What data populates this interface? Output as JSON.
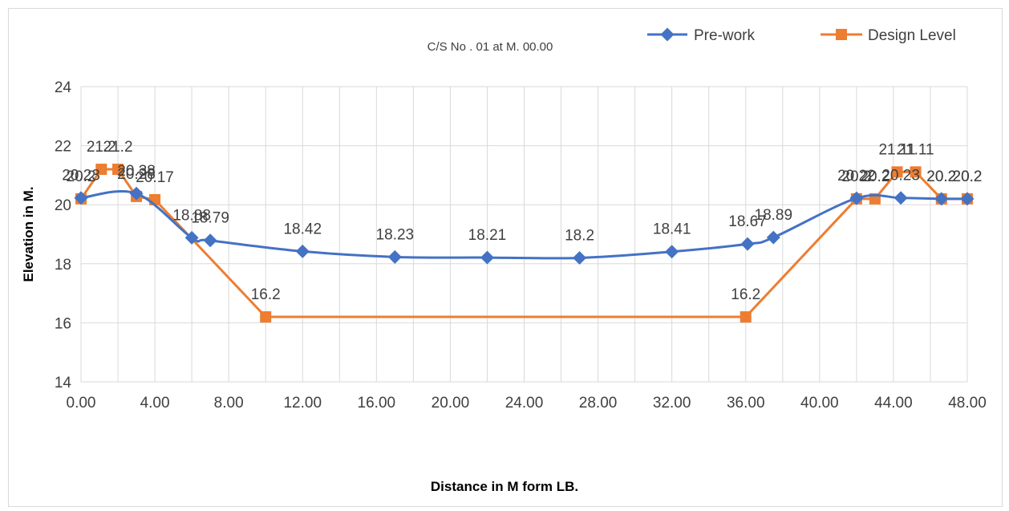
{
  "chart_data": {
    "type": "line",
    "title": "C/S  No . 01 at M. 00.00",
    "xlabel": "Distance in M  form  LB.",
    "ylabel": "Elevation in M.",
    "xlim": [
      0,
      48
    ],
    "ylim": [
      14,
      24
    ],
    "x_ticks": [
      "0.00",
      "4.00",
      "8.00",
      "12.00",
      "16.00",
      "20.00",
      "24.00",
      "28.00",
      "32.00",
      "36.00",
      "40.00",
      "44.00",
      "48.00"
    ],
    "x_tick_values": [
      0,
      4,
      8,
      12,
      16,
      20,
      24,
      28,
      32,
      36,
      40,
      44,
      48
    ],
    "y_ticks": [
      "14",
      "16",
      "18",
      "20",
      "22",
      "24"
    ],
    "y_tick_values": [
      14,
      16,
      18,
      20,
      22,
      24
    ],
    "grid": true,
    "legend_position": "top-right",
    "series": [
      {
        "name": "Pre-work",
        "color": "#4472c4",
        "marker": "diamond",
        "smooth": true,
        "x": [
          0,
          3,
          6,
          7,
          12,
          17,
          22,
          27,
          32,
          36.1,
          37.5,
          42,
          44.4,
          46.6,
          48
        ],
        "values": [
          20.23,
          20.38,
          18.88,
          18.79,
          18.42,
          18.23,
          18.21,
          18.2,
          18.41,
          18.67,
          18.89,
          20.22,
          20.23,
          20.2,
          20.2
        ],
        "labels": [
          "20.23",
          "20.38",
          "18.88",
          "18.79",
          "18.42",
          "18.23",
          "18.21",
          "18.2",
          "18.41",
          "18.67",
          "18.89",
          "20.22",
          "20.23",
          "20.2",
          "20.2"
        ]
      },
      {
        "name": "Design Level",
        "color": "#ed7d31",
        "marker": "square",
        "smooth": false,
        "x": [
          0,
          1.1,
          2,
          3,
          4,
          10,
          36,
          42,
          43,
          44.2,
          45.2,
          46.6,
          48
        ],
        "values": [
          20.2,
          21.2,
          21.2,
          20.28,
          20.17,
          16.2,
          16.2,
          20.2,
          20.2,
          21.11,
          21.11,
          20.2,
          20.2
        ],
        "labels": [
          "20.2",
          "21.2",
          "21.2",
          "20.28",
          "20.17",
          "16.2",
          "16.2",
          "20.2",
          "20.2",
          "21.11",
          "21.11",
          "20.2",
          "20.2"
        ]
      }
    ]
  }
}
